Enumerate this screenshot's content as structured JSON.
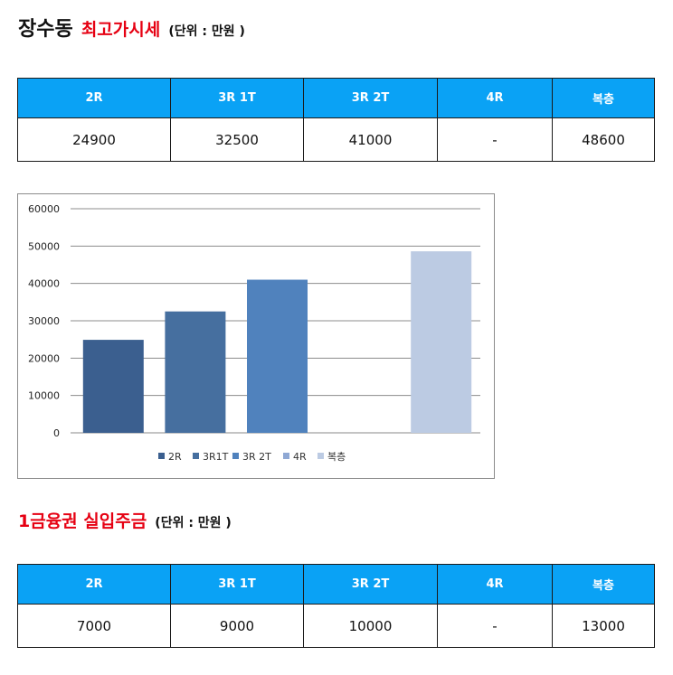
{
  "section1": {
    "title": "장수동",
    "subtitle": "최고가시세",
    "unit": "(단위 : 만원 )",
    "headers": [
      "2R",
      "3R 1T",
      "3R 2T",
      "4R",
      "복층"
    ],
    "values": [
      "24900",
      "32500",
      "41000",
      "-",
      "48600"
    ]
  },
  "section2": {
    "title": "1금융권 실입주금",
    "unit": "(단위 : 만원 )",
    "headers": [
      "2R",
      "3R 1T",
      "3R 2T",
      "4R",
      "복층"
    ],
    "values": [
      "7000",
      "9000",
      "10000",
      "-",
      "13000"
    ]
  },
  "chart_data": {
    "type": "bar",
    "categories": [
      "2R",
      "3R1T",
      "3R 2T",
      "4R",
      "복층"
    ],
    "values": [
      24900,
      32500,
      41000,
      null,
      48600
    ],
    "colors": [
      "#3b5f8f",
      "#466f9f",
      "#5082bd",
      "#8fa8d4",
      "#bccbe3"
    ],
    "yticks": [
      "0",
      "10000",
      "20000",
      "30000",
      "40000",
      "50000",
      "60000"
    ],
    "ylim": [
      0,
      60000
    ],
    "grid": true,
    "legend_position": "bottom"
  }
}
